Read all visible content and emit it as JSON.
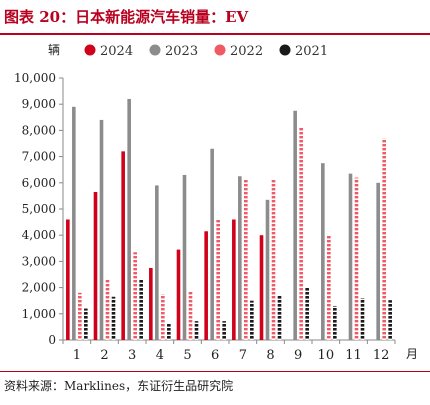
{
  "header": {
    "title": "图表 20：日本新能源汽车销量：EV"
  },
  "footer": {
    "source": "资料来源：Marklines，东证衍生品研究院"
  },
  "chart_data": {
    "type": "bar",
    "title": "图表 20：日本新能源汽车销量：EV",
    "ylabel": "辆",
    "xlabel": "月",
    "ylim": [
      0,
      10000
    ],
    "yticks": [
      0,
      1000,
      2000,
      3000,
      4000,
      5000,
      6000,
      7000,
      8000,
      9000,
      10000
    ],
    "ytick_labels": [
      "0",
      "1,000",
      "2,000",
      "3,000",
      "4,000",
      "5,000",
      "6,000",
      "7,000",
      "8,000",
      "9,000",
      "10,000"
    ],
    "categories": [
      "1",
      "2",
      "3",
      "4",
      "5",
      "6",
      "7",
      "8",
      "9",
      "10",
      "11",
      "12"
    ],
    "legend_position": "top",
    "grid": false,
    "series": [
      {
        "name": "2024",
        "color": "#d0021b",
        "pattern": "solid",
        "values": [
          4600,
          5650,
          7200,
          2750,
          3450,
          4150,
          4600,
          4000,
          null,
          null,
          null,
          null
        ]
      },
      {
        "name": "2023",
        "color": "#8c8c8c",
        "pattern": "solid",
        "values": [
          8900,
          8400,
          9200,
          5900,
          6300,
          7300,
          6250,
          5350,
          8750,
          6750,
          6350,
          6000
        ]
      },
      {
        "name": "2022",
        "color": "#f05a64",
        "pattern": "dotted",
        "values": [
          1800,
          2300,
          3350,
          1750,
          1850,
          4600,
          6150,
          6150,
          8100,
          4000,
          6200,
          7700
        ]
      },
      {
        "name": "2021",
        "color": "#1a1a1a",
        "pattern": "dotted",
        "values": [
          1200,
          1650,
          2300,
          650,
          720,
          720,
          1500,
          1700,
          2000,
          1300,
          1600,
          1520
        ]
      }
    ]
  }
}
